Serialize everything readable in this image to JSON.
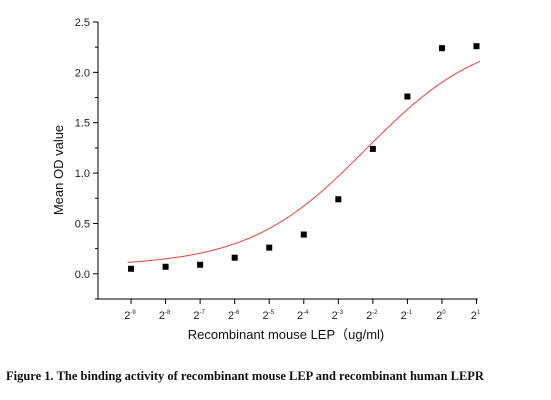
{
  "chart_data": {
    "type": "scatter",
    "xlabel": "Recombinant mouse LEP（ug/ml)",
    "ylabel": "Mean OD value",
    "x_scale": "log2",
    "x_tick_labels": [
      {
        "base": "2",
        "exp": "-9"
      },
      {
        "base": "2",
        "exp": "-8"
      },
      {
        "base": "2",
        "exp": "-7"
      },
      {
        "base": "2",
        "exp": "-6"
      },
      {
        "base": "2",
        "exp": "-5"
      },
      {
        "base": "2",
        "exp": "-4"
      },
      {
        "base": "2",
        "exp": "-3"
      },
      {
        "base": "2",
        "exp": "-2"
      },
      {
        "base": "2",
        "exp": "-1"
      },
      {
        "base": "2",
        "exp": "0"
      },
      {
        "base": "2",
        "exp": "1"
      }
    ],
    "xlim_log2": [
      -10,
      1
    ],
    "ylim": [
      -0.25,
      2.5
    ],
    "y_ticks": [
      "0.0",
      "0.5",
      "1.0",
      "1.5",
      "2.0",
      "2.5"
    ],
    "grid": false,
    "series": [
      {
        "marker": "square",
        "color": "#000000",
        "x_log2": [
          -9,
          -8,
          -7,
          -6,
          -5,
          -4,
          -3,
          -2,
          -1,
          0,
          1
        ],
        "y": [
          0.05,
          0.07,
          0.09,
          0.16,
          0.26,
          0.39,
          0.74,
          1.24,
          1.76,
          2.24,
          2.26
        ]
      }
    ],
    "fit_curve": {
      "color": "#e8413a",
      "model": "4PL",
      "bottom": 0.075,
      "top": 2.4,
      "log2_ec50": -2.2,
      "hill_slope": 0.85
    }
  },
  "caption": "Figure 1. The binding activity of recombinant mouse LEP and recombinant human LEPR"
}
